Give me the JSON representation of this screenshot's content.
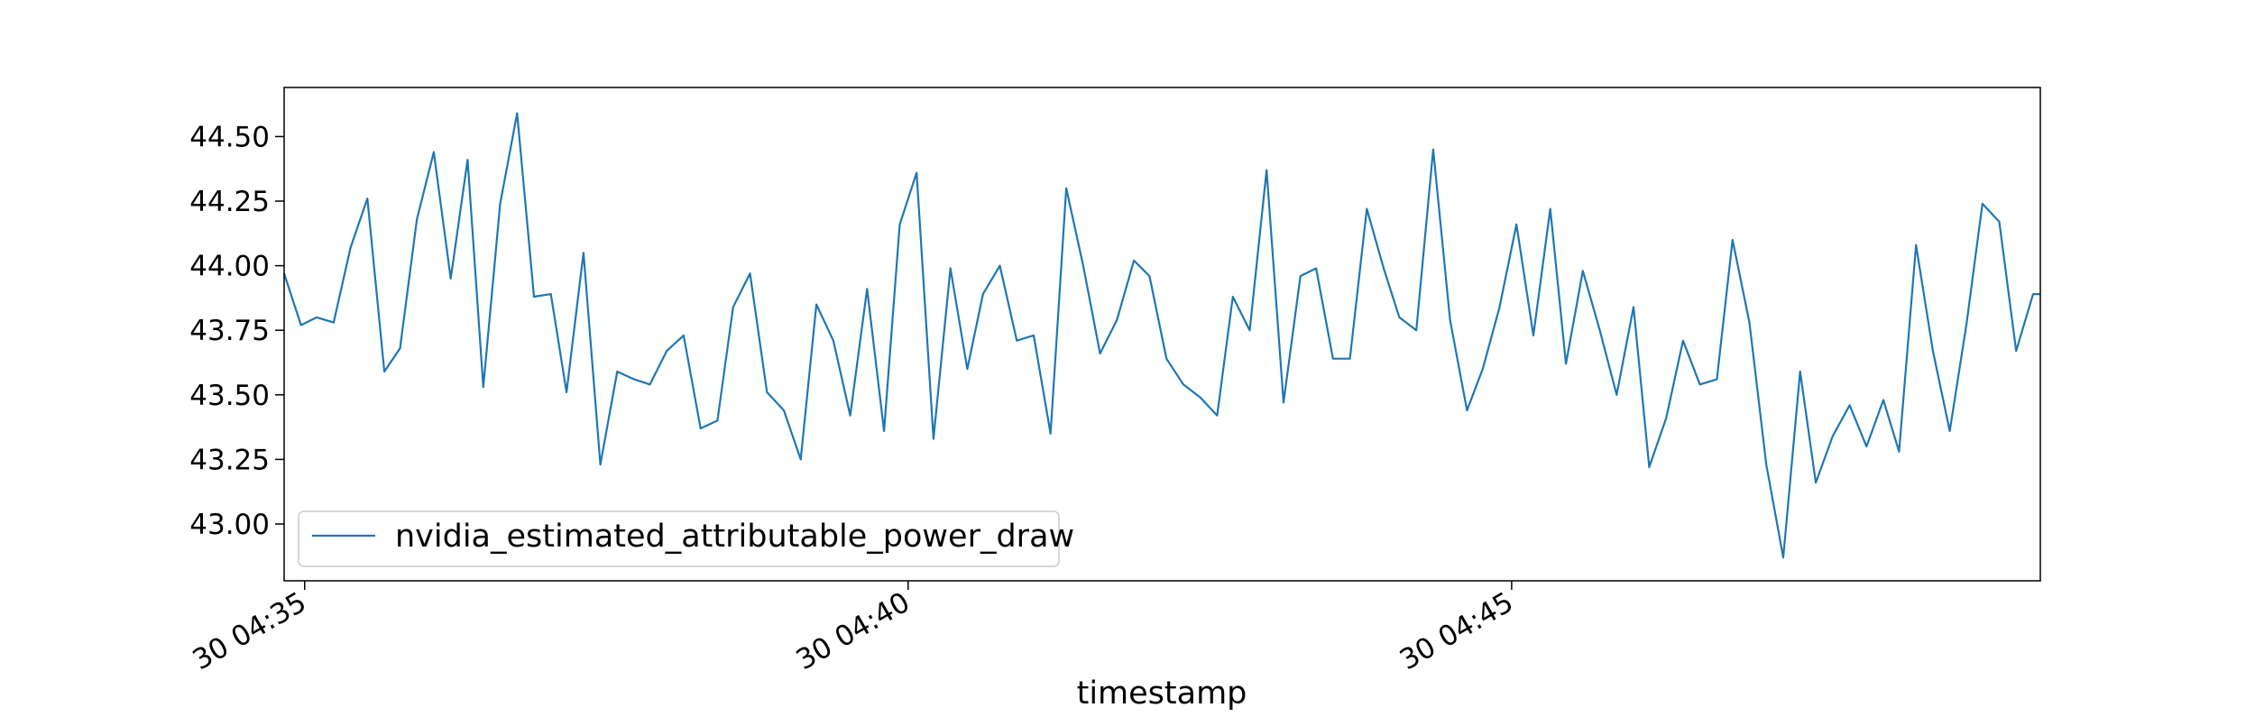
{
  "chart_data": {
    "type": "line",
    "title": "",
    "xlabel": "timestamp",
    "ylabel": "",
    "x_tick_labels": [
      "30 04:35",
      "30 04:40",
      "30 04:45"
    ],
    "x_tick_minutes": [
      35,
      40,
      45
    ],
    "xlim_minutes": [
      34.83,
      49.38
    ],
    "ylim": [
      42.78,
      44.69
    ],
    "y_ticks": [
      43.0,
      43.25,
      43.5,
      43.75,
      44.0,
      44.25,
      44.5
    ],
    "y_tick_labels": [
      "43.00",
      "43.25",
      "43.50",
      "43.75",
      "44.00",
      "44.25",
      "44.50"
    ],
    "grid": false,
    "legend_position": "lower-left",
    "line_color": "#1f77b4",
    "series": [
      {
        "name": "nvidia_estimated_attributable_power_draw",
        "x_minutes": [
          34.83,
          34.97,
          35.1,
          35.24,
          35.38,
          35.52,
          35.66,
          35.79,
          35.93,
          36.07,
          36.21,
          36.35,
          36.48,
          36.62,
          36.76,
          36.9,
          37.04,
          37.17,
          37.31,
          37.45,
          37.59,
          37.73,
          37.86,
          38.0,
          38.14,
          38.28,
          38.42,
          38.55,
          38.69,
          38.83,
          38.97,
          39.11,
          39.24,
          39.38,
          39.52,
          39.66,
          39.8,
          39.93,
          40.07,
          40.21,
          40.35,
          40.49,
          40.62,
          40.76,
          40.9,
          41.04,
          41.18,
          41.31,
          41.45,
          41.59,
          41.73,
          41.87,
          42.0,
          42.14,
          42.28,
          42.42,
          42.56,
          42.69,
          42.83,
          42.97,
          43.11,
          43.25,
          43.38,
          43.52,
          43.66,
          43.8,
          43.94,
          44.07,
          44.21,
          44.35,
          44.49,
          44.63,
          44.76,
          44.9,
          45.04,
          45.18,
          45.32,
          45.45,
          45.59,
          45.73,
          45.87,
          46.01,
          46.14,
          46.28,
          46.42,
          46.56,
          46.7,
          46.83,
          46.97,
          47.11,
          47.25,
          47.39,
          47.52,
          47.66,
          47.8,
          47.94,
          48.08,
          48.21,
          48.35,
          48.49,
          48.63,
          48.77,
          48.9,
          49.04,
          49.18,
          49.32,
          49.38
        ],
        "values": [
          43.97,
          43.77,
          43.8,
          43.78,
          44.07,
          44.26,
          43.59,
          43.68,
          44.18,
          44.44,
          43.95,
          44.41,
          43.53,
          44.24,
          44.59,
          43.88,
          43.89,
          43.51,
          44.05,
          43.23,
          43.59,
          43.56,
          43.54,
          43.67,
          43.73,
          43.37,
          43.4,
          43.84,
          43.97,
          43.51,
          43.44,
          43.25,
          43.85,
          43.71,
          43.42,
          43.91,
          43.36,
          44.16,
          44.36,
          43.33,
          43.99,
          43.6,
          43.89,
          44.0,
          43.71,
          43.73,
          43.35,
          44.3,
          44.0,
          43.66,
          43.79,
          44.02,
          43.96,
          43.64,
          43.54,
          43.49,
          43.42,
          43.88,
          43.75,
          44.37,
          43.47,
          43.96,
          43.99,
          43.64,
          43.64,
          44.22,
          43.99,
          43.8,
          43.75,
          44.45,
          43.79,
          43.44,
          43.6,
          43.84,
          44.16,
          43.73,
          44.22,
          43.62,
          43.98,
          43.75,
          43.5,
          43.84,
          43.22,
          43.41,
          43.71,
          43.54,
          43.56,
          44.1,
          43.78,
          43.23,
          42.87,
          43.59,
          43.16,
          43.34,
          43.46,
          43.3,
          43.48,
          43.28,
          44.08,
          43.67,
          43.36,
          43.78,
          44.24,
          44.17,
          43.67,
          43.89,
          43.89
        ]
      }
    ]
  }
}
